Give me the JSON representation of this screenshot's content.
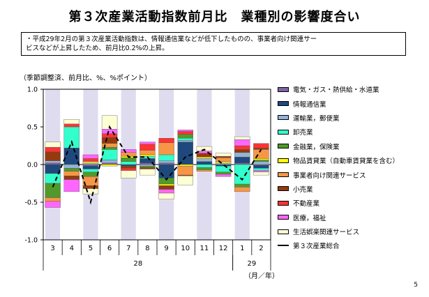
{
  "title": "第３次産業活動指数前月比　業種別の影響度合い",
  "note": {
    "line1": "・平成29年2月の第３次産業活動指数は、情報通信業などが低下したものの、事業者向け関連サー",
    "line2": "ビスなどが上昇したため、前月比0.2%の上昇。"
  },
  "unit_label": "（季節調整済、前月比、%、%ポイント）",
  "axis_unit": "（月／年）",
  "page_number": "5",
  "chart_data": {
    "type": "bar",
    "stacked": true,
    "ylim": [
      -1.0,
      1.0
    ],
    "yticks": [
      "1.0",
      "0.5",
      "0.0",
      "-0.5",
      "-1.0"
    ],
    "ytick_values": [
      1.0,
      0.5,
      0.0,
      -0.5,
      -1.0
    ],
    "categories": [
      "3",
      "4",
      "5",
      "6",
      "7",
      "8",
      "9",
      "10",
      "11",
      "12",
      "1",
      "2"
    ],
    "year_groups": [
      {
        "label": "28",
        "start": 0,
        "end": 9
      },
      {
        "label": "29",
        "start": 10,
        "end": 11
      }
    ],
    "shaded_columns": [
      0,
      2,
      4,
      6,
      8,
      10
    ],
    "shade_color": "#e0dcef",
    "series": [
      {
        "name": "電気・ガス・熱供給・水道業",
        "color": "#8064a2",
        "values": [
          0.02,
          0.0,
          -0.02,
          0.02,
          0.0,
          0.02,
          0.02,
          0.0,
          0.0,
          0.0,
          0.02,
          -0.01
        ]
      },
      {
        "name": "情報通信業",
        "color": "#1f497d",
        "values": [
          -0.12,
          0.22,
          -0.04,
          0.0,
          -0.02,
          0.06,
          -0.18,
          0.3,
          0.04,
          -0.02,
          0.08,
          -0.04
        ]
      },
      {
        "name": "運輸業，郵便業",
        "color": "#95b3d7",
        "values": [
          0.03,
          -0.05,
          0.02,
          0.04,
          0.0,
          -0.02,
          0.03,
          0.02,
          0.04,
          0.02,
          0.06,
          0.04
        ]
      },
      {
        "name": "卸売業",
        "color": "#33ffcc",
        "values": [
          -0.13,
          0.28,
          -0.04,
          0.14,
          0.04,
          0.03,
          0.08,
          0.03,
          -0.04,
          -0.08,
          -0.26,
          -0.03
        ]
      },
      {
        "name": "金融業，保険業",
        "color": "#4f9a2a",
        "values": [
          -0.19,
          -0.04,
          -0.06,
          0.03,
          0.05,
          -0.02,
          -0.08,
          0.05,
          -0.03,
          -0.03,
          -0.04,
          0.02
        ]
      },
      {
        "name": "物品賃貸業（自動車賃貸業を含む）",
        "color": "#ffff00",
        "values": [
          0.0,
          0.0,
          0.02,
          -0.02,
          0.02,
          0.02,
          -0.02,
          -0.02,
          0.02,
          0.02,
          0.0,
          0.02
        ]
      },
      {
        "name": "事業者向け関連サービス",
        "color": "#f79646",
        "values": [
          -0.05,
          -0.06,
          -0.12,
          0.05,
          0.05,
          0.06,
          0.16,
          -0.12,
          -0.02,
          0.05,
          -0.06,
          0.12
        ]
      },
      {
        "name": "小売業",
        "color": "#953a0f",
        "values": [
          0.12,
          -0.05,
          -0.04,
          0.08,
          -0.03,
          -0.02,
          -0.05,
          -0.01,
          0.05,
          0.02,
          0.04,
          0.02
        ]
      },
      {
        "name": "不動産業",
        "color": "#ff3333",
        "values": [
          0.06,
          0.04,
          0.04,
          0.05,
          -0.03,
          0.08,
          0.06,
          0.04,
          0.0,
          0.0,
          0.05,
          0.06
        ]
      },
      {
        "name": "医療，福祉",
        "color": "#ff66ff",
        "values": [
          -0.08,
          -0.16,
          0.05,
          0.06,
          0.04,
          0.03,
          -0.05,
          0.02,
          0.03,
          -0.03,
          0.08,
          -0.02
        ]
      },
      {
        "name": "生活娯楽関連サービス",
        "color": "#ffffd4",
        "values": [
          0.07,
          0.06,
          -0.07,
          0.18,
          -0.1,
          -0.08,
          -0.08,
          -0.12,
          0.06,
          0.04,
          0.04,
          -0.04
        ]
      }
    ],
    "total": {
      "name": "第３次産業総合",
      "values": [
        -0.3,
        0.3,
        -0.5,
        0.5,
        0.1,
        0.1,
        -0.2,
        0.1,
        0.2,
        0.0,
        -0.2,
        0.2
      ]
    }
  }
}
